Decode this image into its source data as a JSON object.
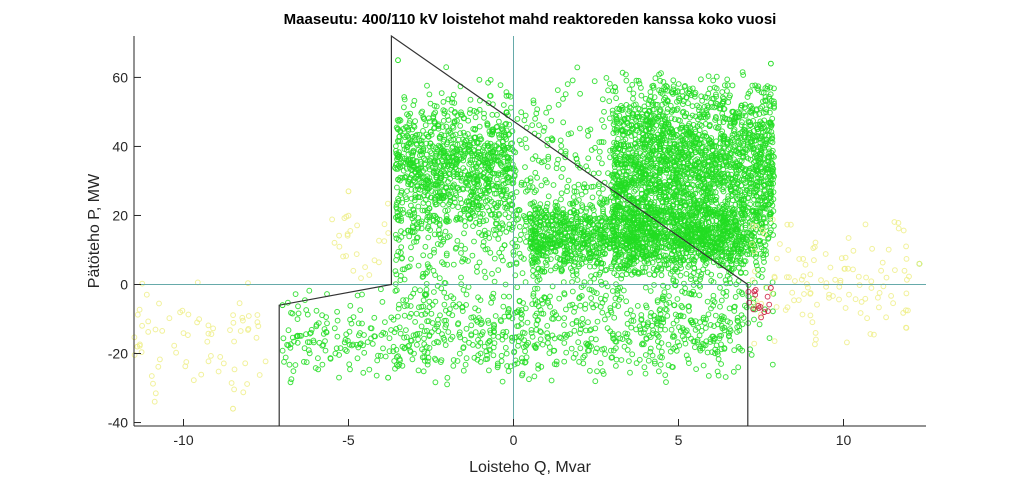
{
  "chart_data": {
    "type": "scatter",
    "title": "Maaseutu: 400/110 kV loistehot mahd reaktoreden kanssa koko vuosi",
    "xlabel": "Loisteho Q, Mvar",
    "ylabel": "Pätöteho P, MW",
    "xlim": [
      -11.5,
      12.5
    ],
    "ylim": [
      -41,
      72
    ],
    "xticks": [
      -10,
      -5,
      0,
      5,
      10
    ],
    "xtick_labels": [
      "-10",
      "-5",
      "0",
      "5",
      "10"
    ],
    "yticks": [
      -40,
      -20,
      0,
      20,
      40,
      60
    ],
    "ytick_labels": [
      "-40",
      "-20",
      "0",
      "20",
      "40",
      "60"
    ],
    "grid": false,
    "marker": "circle-open",
    "colors": {
      "inside": "#22dd22",
      "outside": "#eeee88",
      "violation": "#cc2244",
      "reference_lines": "#66aaaa",
      "boundary": "#333333"
    },
    "reference_lines": [
      {
        "orientation": "horizontal",
        "y": 0
      },
      {
        "orientation": "vertical",
        "x": 0
      }
    ],
    "boundary_polyline": {
      "x": [
        -7.1,
        -7.1,
        -3.7,
        -3.7,
        7.1,
        7.1
      ],
      "y": [
        -41,
        -6,
        0,
        72,
        0,
        -41
      ]
    },
    "series": [
      {
        "category": "inside",
        "clusters": [
          {
            "count": 1700,
            "x_range": [
              -3.6,
              7.9
            ],
            "y_range": [
              -28,
              65
            ]
          },
          {
            "count": 1900,
            "x_range": [
              3.0,
              7.9
            ],
            "y_range": [
              5,
              62
            ]
          },
          {
            "count": 1200,
            "x_range": [
              0.5,
              7.0
            ],
            "y_range": [
              2,
              25
            ]
          },
          {
            "count": 700,
            "x_range": [
              -3.6,
              0
            ],
            "y_range": [
              15,
              55
            ]
          },
          {
            "count": 600,
            "x_range": [
              -7.0,
              7.0
            ],
            "y_range": [
              -30,
              0
            ]
          }
        ],
        "sample_points": [
          [
            -3.5,
            65
          ],
          [
            7.8,
            64
          ],
          [
            12.3,
            6
          ],
          [
            -7.0,
            -6
          ],
          [
            -3.8,
            -27
          ]
        ]
      },
      {
        "category": "outside",
        "clusters": [
          {
            "count": 70,
            "x_range": [
              -11.5,
              -7.5
            ],
            "y_range": [
              -36,
              3
            ]
          },
          {
            "count": 120,
            "x_range": [
              7.2,
              12.0
            ],
            "y_range": [
              -20,
              22
            ]
          },
          {
            "count": 25,
            "x_range": [
              -5.5,
              -3.7
            ],
            "y_range": [
              0,
              27
            ]
          }
        ],
        "sample_points": [
          [
            -11.4,
            -18
          ],
          [
            -8.5,
            -36
          ],
          [
            -5.0,
            27
          ],
          [
            12.3,
            6
          ]
        ]
      },
      {
        "category": "violation",
        "clusters": [
          {
            "count": 12,
            "x_range": [
              7.1,
              7.9
            ],
            "y_range": [
              -10,
              0
            ]
          }
        ],
        "sample_points": [
          [
            7.3,
            -2
          ],
          [
            7.6,
            -8
          ],
          [
            7.8,
            -1
          ]
        ]
      }
    ]
  }
}
